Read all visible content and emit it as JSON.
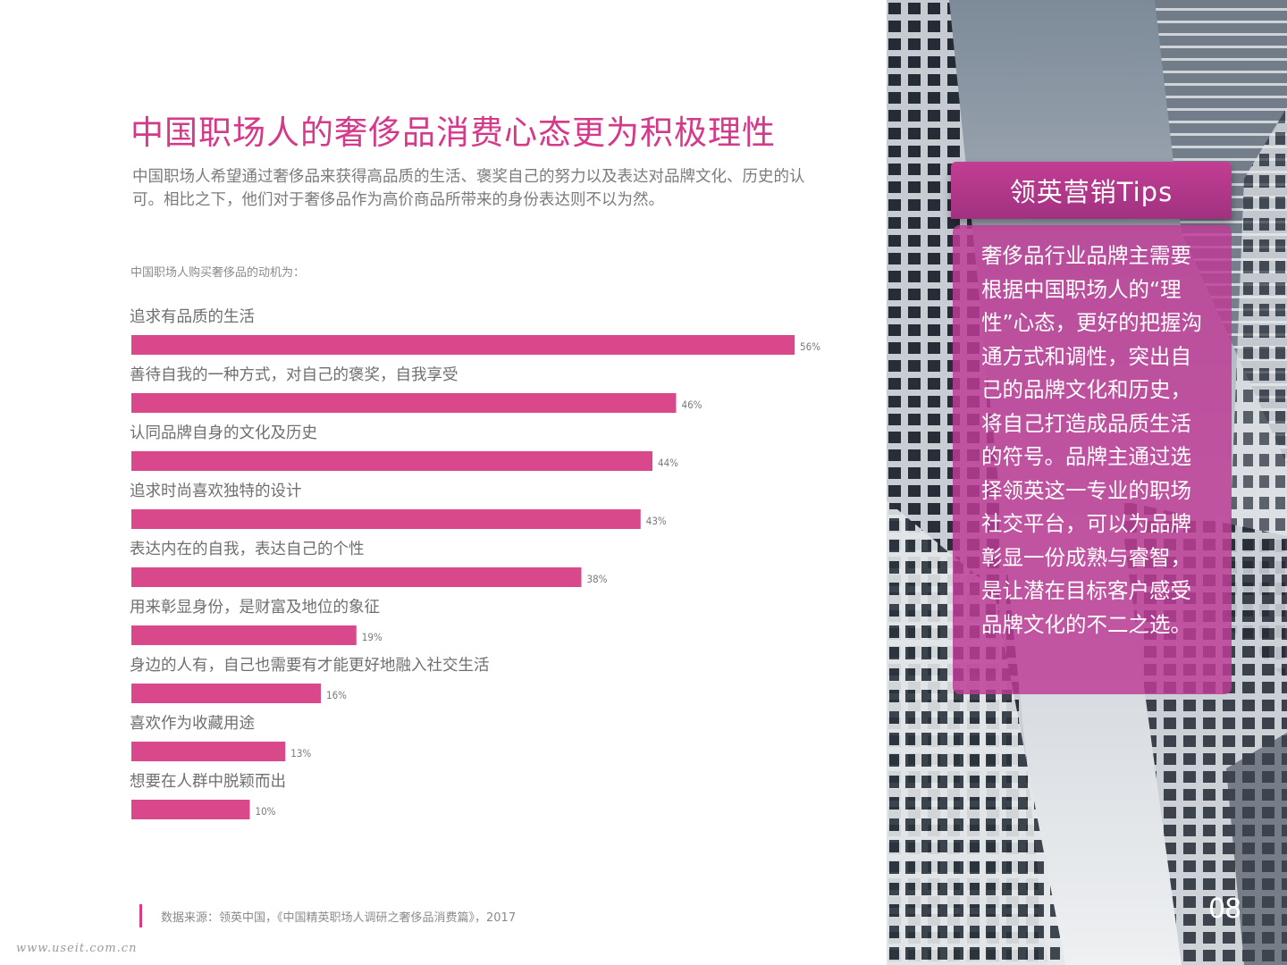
{
  "title": "中国职场人的奢侈品消费心态更为积极理性",
  "subtitle": "中国职场人希望通过奢侈品来获得高品质的生活、褒奖自己的努力以及表达对品牌文化、历史的认可。相比之下，他们对于奢侈品作为高价商品所带来的身份表达则不以为然。",
  "chart_caption": "中国职场人购买奢侈品的动机为：",
  "chart_data": {
    "type": "bar",
    "orientation": "horizontal",
    "title": "中国职场人购买奢侈品的动机为：",
    "categories": [
      "追求有品质的生活",
      "善待自我的一种方式，对自己的褒奖，自我享受",
      "认同品牌自身的文化及历史",
      "追求时尚喜欢独特的设计",
      "表达内在的自我，表达自己的个性",
      "用来彰显身份，是财富及地位的象征",
      "身边的人有，自己也需要有才能更好地融入社交生活",
      "喜欢作为收藏用途",
      "想要在人群中脱颖而出"
    ],
    "values": [
      56,
      46,
      44,
      43,
      38,
      19,
      16,
      13,
      10
    ],
    "value_labels": [
      "56%",
      "46%",
      "44%",
      "43%",
      "38%",
      "19%",
      "16%",
      "13%",
      "10%"
    ],
    "unit": "%",
    "bar_color": "#d9488a",
    "grid": false,
    "legend": "none"
  },
  "source": "数据来源：领英中国，《中国精英职场人调研之奢侈品消费篇》，2017",
  "watermark": "www.useit.com.cn",
  "tips": {
    "header": "领英营销Tips",
    "body": "奢侈品行业品牌主需要根据中国职场人的“理性”心态，更好的把握沟通方式和调性，突出自己的品牌文化和历史，将自己打造成品质生活的符号。品牌主通过选择领英这一专业的职场社交平台，可以为品牌彰显一份成熟与睿智，是让潜在目标客户感受品牌文化的不二之选。"
  },
  "page_number": "08",
  "colors": {
    "accent": "#d5398a",
    "bar": "#d9488a",
    "tips_header": "#b2388a",
    "tips_body": "#be3c96",
    "body_text": "#7b7b7b"
  }
}
